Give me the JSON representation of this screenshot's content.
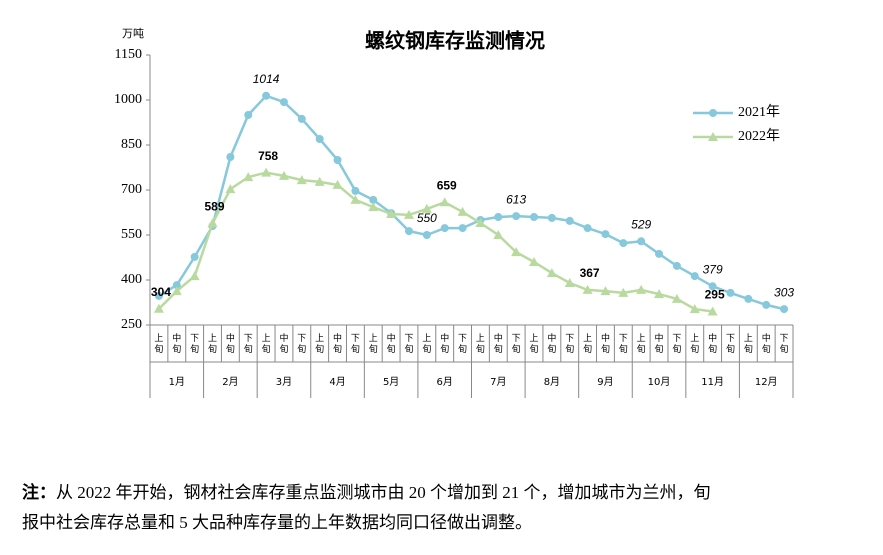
{
  "chart_data": {
    "type": "line",
    "title": "螺纹钢库存监测情况",
    "y_unit": "万吨",
    "categories": [
      "上旬",
      "中旬",
      "下旬",
      "上旬",
      "中旬",
      "下旬",
      "上旬",
      "中旬",
      "下旬",
      "上旬",
      "中旬",
      "下旬",
      "上旬",
      "中旬",
      "下旬",
      "上旬",
      "中旬",
      "下旬",
      "上旬",
      "中旬",
      "下旬",
      "上旬",
      "中旬",
      "下旬",
      "上旬",
      "中旬",
      "下旬",
      "上旬",
      "中旬",
      "下旬",
      "上旬",
      "中旬",
      "下旬",
      "上旬",
      "中旬",
      "下旬"
    ],
    "months": [
      "1月",
      "2月",
      "3月",
      "4月",
      "5月",
      "6月",
      "7月",
      "8月",
      "9月",
      "10月",
      "11月",
      "12月"
    ],
    "ylim": [
      250,
      1150
    ],
    "yticks": [
      250,
      400,
      550,
      700,
      850,
      1000,
      1150
    ],
    "legend": "upper right",
    "series": [
      {
        "name": "2021年",
        "color": "#86c8dc",
        "marker": "circle",
        "values": [
          347,
          383,
          477,
          580,
          810,
          950,
          1014,
          993,
          937,
          870,
          800,
          697,
          667,
          623,
          563,
          550,
          573,
          573,
          600,
          610,
          613,
          610,
          607,
          597,
          573,
          553,
          523,
          529,
          487,
          447,
          413,
          379,
          357,
          337,
          317,
          303
        ],
        "value_labels": [
          null,
          null,
          null,
          null,
          null,
          null,
          "1014",
          null,
          null,
          null,
          null,
          null,
          null,
          null,
          null,
          "550",
          null,
          null,
          null,
          null,
          "613",
          null,
          null,
          null,
          null,
          null,
          null,
          "529",
          null,
          null,
          null,
          "379",
          null,
          null,
          null,
          "303"
        ]
      },
      {
        "name": "2022年",
        "color": "#b9da9f",
        "marker": "triangle",
        "values": [
          304,
          363,
          413,
          589,
          703,
          743,
          758,
          747,
          733,
          727,
          717,
          667,
          643,
          620,
          617,
          637,
          659,
          627,
          590,
          550,
          493,
          460,
          423,
          390,
          367,
          363,
          357,
          367,
          353,
          337,
          303,
          295,
          null,
          null,
          null,
          null
        ],
        "value_labels": [
          "304",
          null,
          null,
          "589",
          null,
          null,
          "758",
          null,
          null,
          null,
          null,
          null,
          null,
          null,
          null,
          null,
          "659",
          null,
          null,
          null,
          null,
          null,
          null,
          null,
          "367",
          null,
          null,
          null,
          null,
          null,
          null,
          "295",
          null,
          null,
          null,
          null
        ]
      }
    ]
  },
  "note": {
    "prefix": "注：",
    "lines": [
      "从 2022 年开始，钢材社会库存重点监测城市由 20 个增加到 21 个，增加城市为兰州，旬",
      "报中社会库存总量和 5 大品种库存量的上年数据均同口径做出调整。"
    ]
  }
}
